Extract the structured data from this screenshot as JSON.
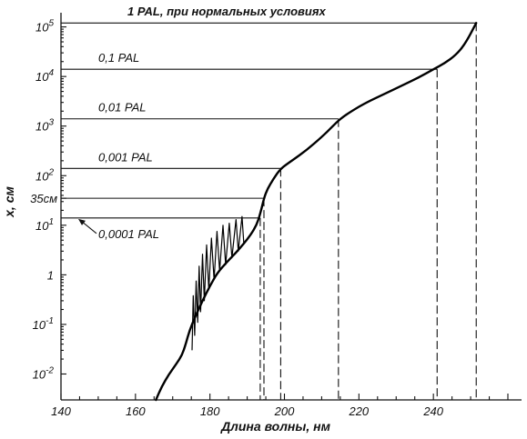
{
  "chart_data": {
    "type": "line",
    "title": "1 PAL, при нормальных условиях",
    "xlabel": "Длина волны, нм",
    "ylabel": "x, см",
    "xlim": [
      140,
      260
    ],
    "ylim": [
      0.003,
      150000
    ],
    "yscale": "log",
    "x_ticks": [
      {
        "v": 140,
        "label": "140"
      },
      {
        "v": 160,
        "label": "160"
      },
      {
        "v": 180,
        "label": "180"
      },
      {
        "v": 200,
        "label": "200"
      },
      {
        "v": 220,
        "label": "220"
      },
      {
        "v": 240,
        "label": "240"
      }
    ],
    "y_ticks": [
      {
        "v": 0.01,
        "base": "10",
        "exp": "-2"
      },
      {
        "v": 0.1,
        "base": "10",
        "exp": "-1"
      },
      {
        "v": 1,
        "base": "1",
        "exp": ""
      },
      {
        "v": 10,
        "base": "10",
        "exp": "1"
      },
      {
        "v": 100,
        "base": "10",
        "exp": "2"
      },
      {
        "v": 1000,
        "base": "10",
        "exp": "3"
      },
      {
        "v": 10000,
        "base": "10",
        "exp": "4"
      },
      {
        "v": 100000,
        "base": "10",
        "exp": "5"
      }
    ],
    "y_extra_label": {
      "v": 35,
      "label": "35см"
    },
    "levels": [
      {
        "label": "1 PAL, при нормальных условиях",
        "y": 120000,
        "x_end": 251.5
      },
      {
        "label": "0,1 PAL",
        "y": 14000,
        "x_end": 241
      },
      {
        "label": "0,01 PAL",
        "y": 1400,
        "x_end": 214.5
      },
      {
        "label": "0,001 PAL",
        "y": 140,
        "x_end": 199
      },
      {
        "label": "35см",
        "y": 35,
        "x_end": 194.5
      },
      {
        "label": "0,0001 PAL",
        "y": 14,
        "x_end": 193.5
      }
    ],
    "curve": [
      [
        165.5,
        0.003
      ],
      [
        167,
        0.0055
      ],
      [
        169,
        0.01
      ],
      [
        171,
        0.016
      ],
      [
        172.5,
        0.024
      ],
      [
        173.5,
        0.04
      ],
      [
        174.5,
        0.075
      ],
      [
        176,
        0.14
      ],
      [
        178,
        0.3
      ],
      [
        180,
        0.6
      ],
      [
        182,
        1.1
      ],
      [
        184.5,
        1.8
      ],
      [
        187,
        2.8
      ],
      [
        189,
        4.2
      ],
      [
        191,
        6.5
      ],
      [
        192.5,
        10
      ],
      [
        193.5,
        17
      ],
      [
        194.5,
        35
      ],
      [
        195.5,
        55
      ],
      [
        197,
        85
      ],
      [
        199,
        140
      ],
      [
        202,
        200
      ],
      [
        206,
        330
      ],
      [
        210,
        600
      ],
      [
        213,
        1000
      ],
      [
        215,
        1400
      ],
      [
        218,
        2000
      ],
      [
        222,
        3000
      ],
      [
        227,
        4500
      ],
      [
        232,
        6800
      ],
      [
        236,
        9500
      ],
      [
        240,
        14000
      ],
      [
        243,
        18500
      ],
      [
        246,
        27000
      ],
      [
        248.5,
        45000
      ],
      [
        251.5,
        120000
      ]
    ],
    "band_oscillations": [
      [
        175.2,
        0.03
      ],
      [
        175.5,
        0.38
      ],
      [
        175.9,
        0.06
      ],
      [
        176.3,
        0.75
      ],
      [
        176.7,
        0.11
      ],
      [
        177.1,
        1.5
      ],
      [
        177.5,
        0.18
      ],
      [
        178.0,
        2.6
      ],
      [
        178.5,
        0.3
      ],
      [
        179.1,
        4
      ],
      [
        179.7,
        0.5
      ],
      [
        180.4,
        5.5
      ],
      [
        181.1,
        0.8
      ],
      [
        181.9,
        7.5
      ],
      [
        182.6,
        1.2
      ],
      [
        183.5,
        10
      ],
      [
        184.2,
        1.6
      ],
      [
        185.2,
        11
      ],
      [
        185.9,
        2.2
      ],
      [
        187.0,
        13
      ],
      [
        187.6,
        3
      ],
      [
        188.6,
        15
      ],
      [
        189.1,
        4.2
      ]
    ]
  }
}
